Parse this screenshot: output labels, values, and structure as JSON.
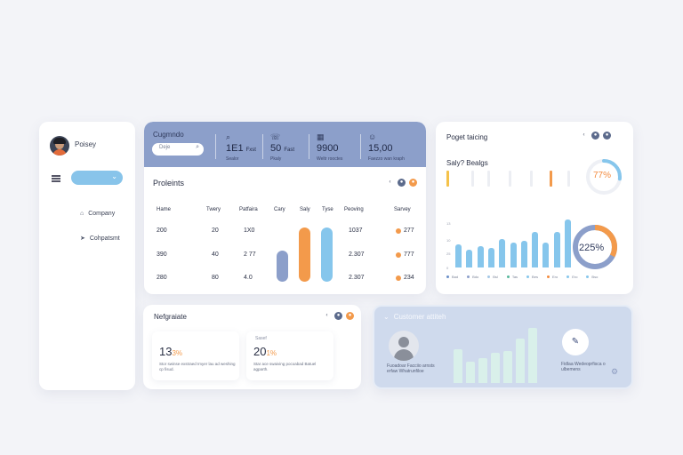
{
  "sidebar": {
    "user_name": "Poisey",
    "items": [
      {
        "label": "Company",
        "icon": "home-icon"
      },
      {
        "label": "Cohpatsmt",
        "icon": "send-icon"
      }
    ]
  },
  "header": {
    "title": "Cugmndo",
    "search_placeholder": "Deje",
    "stats": [
      {
        "icon": "search-icon",
        "value": "1E1",
        "unit": "Fxst",
        "label": "Sealor"
      },
      {
        "icon": "phone-icon",
        "value": "50",
        "unit": "Fast",
        "label": "Pkaly"
      },
      {
        "icon": "calendar-icon",
        "value": "9900",
        "unit": "",
        "label": "Weltr rooctes"
      },
      {
        "icon": "user-icon",
        "value": "15,00",
        "unit": "",
        "label": "Faezzo wan kraph"
      }
    ]
  },
  "projects": {
    "title": "Proleints",
    "columns": [
      "Hame",
      "Twery",
      "Patfaira",
      "Cary",
      "Saly",
      "Tyse",
      "Peoving",
      "Sarvey"
    ],
    "rows": [
      {
        "a": "200",
        "b": "20",
        "c": "1X0",
        "d": "1037",
        "e": "277"
      },
      {
        "a": "390",
        "b": "40",
        "c": "2 77",
        "d": "2.307",
        "e": "777"
      },
      {
        "a": "280",
        "b": "80",
        "c": "4.0",
        "d": "2.307",
        "e": "234"
      }
    ],
    "bars": [
      {
        "level": 0.55,
        "color": "#8c9fca"
      },
      {
        "level": 0.95,
        "color": "#f39a4b"
      },
      {
        "level": 0.95,
        "color": "#86c6ec"
      }
    ]
  },
  "tracking": {
    "title": "Poget taicing",
    "subtitle": "Saly? Bealgs",
    "gauge_value": "77%",
    "gauge_level": 0.77,
    "donut_value": "225%",
    "donut_level": 0.72,
    "y_labels": [
      "13",
      "10",
      "25",
      "0"
    ],
    "bars": [
      26,
      20,
      24,
      22,
      32,
      28,
      30,
      40,
      28,
      40,
      54
    ],
    "legend": [
      {
        "label": "Bad",
        "color": "#6a8ec8"
      },
      {
        "label": "Bdo",
        "color": "#8c9fca"
      },
      {
        "label": "Bsl",
        "color": "#a4c7e6"
      },
      {
        "label": "Tas",
        "color": "#58b89c"
      },
      {
        "label": "Bes",
        "color": "#86c6ec"
      },
      {
        "label": "Ero",
        "color": "#f38b3f"
      },
      {
        "label": "Ero",
        "color": "#86c6ec"
      },
      {
        "label": "Bso",
        "color": "#86c6ec"
      }
    ]
  },
  "negotiations": {
    "title": "Nefgraiate",
    "cards": [
      {
        "label": "",
        "value": "13",
        "percent": "3%",
        "desc": "Stor swinse exstraed Imyer lau ad weshing cp fisud."
      },
      {
        "label": "Sasef",
        "value": "20",
        "percent": "1%",
        "desc": "Star ace swaiving pocoabad Batuel agparth."
      }
    ]
  },
  "customers": {
    "title": "Customer attiteh",
    "person_caption": "Fuoadoar Facciio arnsts erfaw Whatrunfiloe",
    "right_caption": "Fidlaa Wedeoprfisca o ulbemens",
    "ring_icon": "check-icon",
    "bars": [
      38,
      24,
      28,
      34,
      36,
      50,
      62
    ]
  },
  "colors": {
    "accent": "#8c9fca",
    "orange": "#f39a4b",
    "sky": "#86c6ec"
  }
}
